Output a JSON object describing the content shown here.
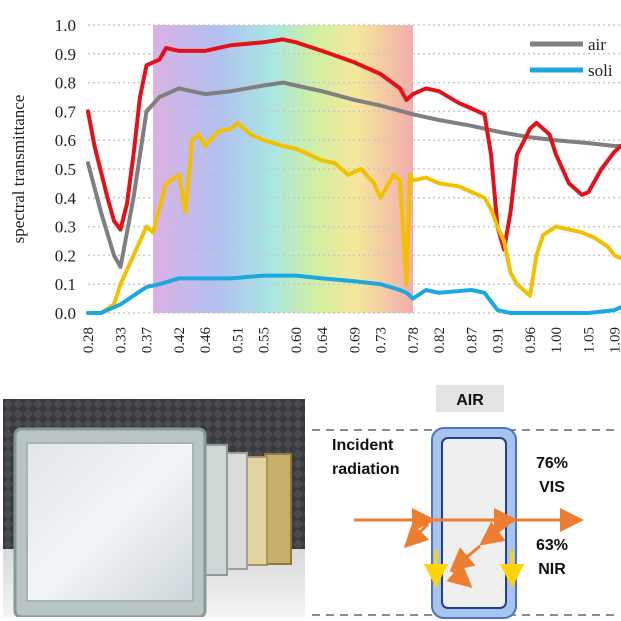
{
  "chart_data": {
    "type": "line",
    "ylabel": "spectral transmittance",
    "xlabel": "",
    "ylim": [
      0,
      1.0
    ],
    "y_ticks": [
      "0.0",
      "0.1",
      "0.2",
      "0.3",
      "0.4",
      "0.5",
      "0.6",
      "0.7",
      "0.8",
      "0.9",
      "1.0"
    ],
    "x_range": [
      0.28,
      1.1
    ],
    "x_ticks": [
      "0.28",
      "0.33",
      "0.37",
      "0.42",
      "0.46",
      "0.51",
      "0.55",
      "0.60",
      "0.64",
      "0.69",
      "0.73",
      "0.78",
      "0.82",
      "0.87",
      "0.91",
      "0.96",
      "1.00",
      "1.05",
      "1.09"
    ],
    "visible_band": [
      0.38,
      0.78
    ],
    "grid": "horizontal dotted",
    "legend_position": "top-right",
    "legend": [
      {
        "label": "air",
        "color": "#7f7f7f"
      },
      {
        "label": "soli",
        "color": "#1ba8e0"
      }
    ],
    "series": [
      {
        "name": "air",
        "color": "#7f7f7f",
        "x": [
          0.28,
          0.3,
          0.32,
          0.33,
          0.35,
          0.37,
          0.39,
          0.42,
          0.46,
          0.5,
          0.55,
          0.58,
          0.6,
          0.64,
          0.69,
          0.73,
          0.78,
          0.82,
          0.87,
          0.91,
          0.96,
          1.0,
          1.05,
          1.09,
          1.1
        ],
        "y": [
          0.52,
          0.35,
          0.2,
          0.16,
          0.4,
          0.7,
          0.75,
          0.78,
          0.76,
          0.77,
          0.79,
          0.8,
          0.79,
          0.77,
          0.74,
          0.72,
          0.69,
          0.67,
          0.65,
          0.63,
          0.61,
          0.6,
          0.59,
          0.58,
          0.58
        ]
      },
      {
        "color": "#e3121a",
        "x": [
          0.28,
          0.29,
          0.31,
          0.32,
          0.33,
          0.34,
          0.35,
          0.36,
          0.37,
          0.39,
          0.4,
          0.42,
          0.44,
          0.46,
          0.5,
          0.55,
          0.58,
          0.6,
          0.64,
          0.69,
          0.73,
          0.76,
          0.77,
          0.78,
          0.8,
          0.82,
          0.85,
          0.87,
          0.89,
          0.9,
          0.91,
          0.92,
          0.93,
          0.94,
          0.96,
          0.97,
          0.99,
          1.0,
          1.02,
          1.04,
          1.05,
          1.07,
          1.09,
          1.1
        ],
        "y": [
          0.7,
          0.58,
          0.4,
          0.32,
          0.29,
          0.38,
          0.55,
          0.75,
          0.86,
          0.88,
          0.92,
          0.91,
          0.91,
          0.91,
          0.93,
          0.94,
          0.95,
          0.94,
          0.91,
          0.87,
          0.83,
          0.78,
          0.74,
          0.76,
          0.78,
          0.77,
          0.73,
          0.71,
          0.69,
          0.55,
          0.3,
          0.22,
          0.35,
          0.55,
          0.64,
          0.66,
          0.62,
          0.55,
          0.45,
          0.41,
          0.42,
          0.5,
          0.56,
          0.58
        ]
      },
      {
        "color": "#f2c000",
        "x": [
          0.28,
          0.3,
          0.32,
          0.33,
          0.35,
          0.36,
          0.37,
          0.38,
          0.4,
          0.42,
          0.43,
          0.44,
          0.45,
          0.46,
          0.48,
          0.5,
          0.51,
          0.53,
          0.55,
          0.58,
          0.6,
          0.62,
          0.64,
          0.66,
          0.68,
          0.7,
          0.72,
          0.73,
          0.75,
          0.76,
          0.77,
          0.775,
          0.78,
          0.8,
          0.82,
          0.85,
          0.87,
          0.89,
          0.9,
          0.91,
          0.92,
          0.93,
          0.94,
          0.95,
          0.96,
          0.97,
          0.98,
          1.0,
          1.02,
          1.04,
          1.06,
          1.08,
          1.09,
          1.1
        ],
        "y": [
          0.0,
          0.0,
          0.03,
          0.1,
          0.2,
          0.25,
          0.3,
          0.28,
          0.45,
          0.48,
          0.35,
          0.6,
          0.62,
          0.58,
          0.63,
          0.64,
          0.66,
          0.62,
          0.6,
          0.58,
          0.57,
          0.55,
          0.53,
          0.52,
          0.48,
          0.5,
          0.45,
          0.4,
          0.48,
          0.46,
          0.1,
          0.48,
          0.46,
          0.47,
          0.45,
          0.44,
          0.42,
          0.4,
          0.36,
          0.3,
          0.25,
          0.14,
          0.1,
          0.08,
          0.06,
          0.2,
          0.27,
          0.3,
          0.29,
          0.28,
          0.26,
          0.23,
          0.2,
          0.19
        ]
      },
      {
        "name": "soli",
        "color": "#1ba8e0",
        "x": [
          0.28,
          0.3,
          0.31,
          0.33,
          0.35,
          0.37,
          0.39,
          0.42,
          0.46,
          0.5,
          0.55,
          0.6,
          0.64,
          0.69,
          0.73,
          0.76,
          0.77,
          0.78,
          0.8,
          0.82,
          0.87,
          0.89,
          0.9,
          0.91,
          0.93,
          0.96,
          1.0,
          1.05,
          1.09,
          1.1
        ],
        "y": [
          0.0,
          0.0,
          0.01,
          0.03,
          0.06,
          0.09,
          0.1,
          0.12,
          0.12,
          0.12,
          0.13,
          0.13,
          0.12,
          0.11,
          0.1,
          0.08,
          0.07,
          0.05,
          0.08,
          0.07,
          0.08,
          0.07,
          0.04,
          0.01,
          0.0,
          0.0,
          0.0,
          0.0,
          0.01,
          0.02
        ]
      }
    ]
  },
  "diagram": {
    "label_air": "AIR",
    "incident_line1": "Incident",
    "incident_line2": "radiation",
    "vis_pct": "76%",
    "vis_label": "VIS",
    "nir_pct": "63%",
    "nir_label": "NIR"
  }
}
